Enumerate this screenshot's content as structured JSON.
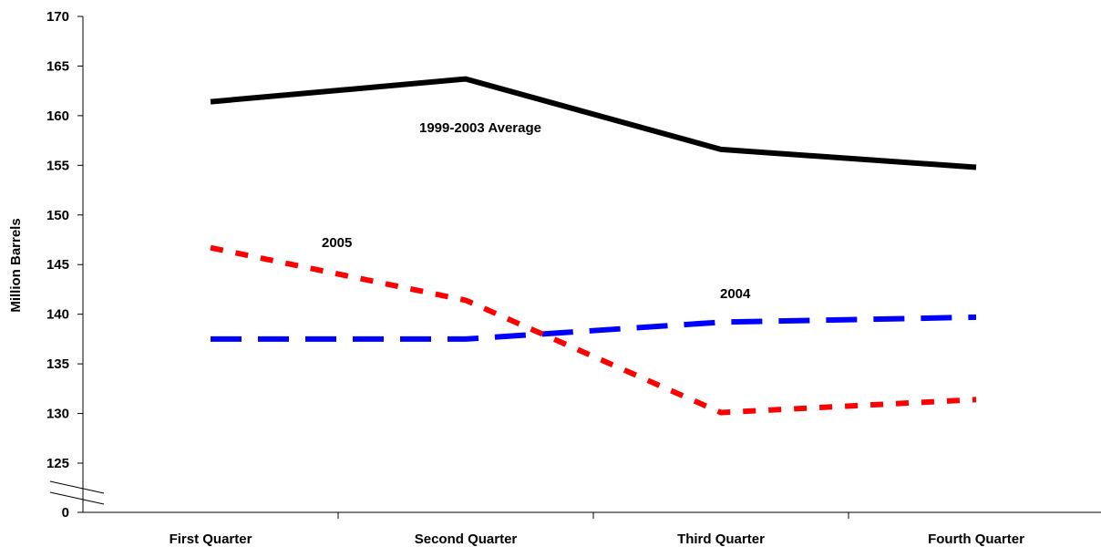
{
  "chart_data": {
    "type": "line",
    "title": "",
    "xlabel": "",
    "ylabel": "Million Barrels",
    "categories": [
      "First Quarter",
      "Second Quarter",
      "Third Quarter",
      "Fourth Quarter"
    ],
    "yticks": [
      "0",
      "125",
      "130",
      "135",
      "140",
      "145",
      "150",
      "155",
      "160",
      "165",
      "170"
    ],
    "ylim": [
      125,
      170
    ],
    "axis_break": true,
    "grid": false,
    "legend": "none",
    "series": [
      {
        "name": "1999-2003 Average",
        "values": [
          161.4,
          163.7,
          156.6,
          154.8
        ],
        "color": "#000000",
        "style": "solid"
      },
      {
        "name": "2005",
        "values": [
          146.7,
          141.4,
          130.1,
          131.4
        ],
        "color": "#ff0000",
        "style": "dotted"
      },
      {
        "name": "2004",
        "values": [
          137.5,
          137.5,
          139.2,
          139.7
        ],
        "color": "#0000ff",
        "style": "dashed"
      }
    ]
  }
}
